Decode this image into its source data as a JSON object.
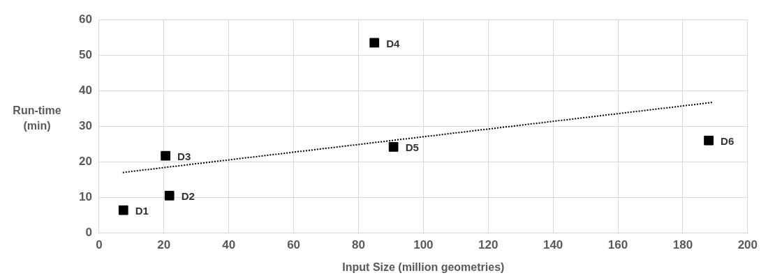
{
  "chart_data": {
    "type": "scatter",
    "xlabel": "Input Size (million geometries)",
    "ylabel": "Run-time (min)",
    "x": [
      7.5,
      21.7,
      20.5,
      84.9,
      90.8,
      188
    ],
    "series": [
      {
        "type": "scatter",
        "color": "#000000",
        "values": [
          6.4,
          10.5,
          21.7,
          53.5,
          24.2,
          26
        ],
        "marker": "square"
      },
      {
        "type": "line",
        "color": "#000000",
        "x": [
          7.3,
          189
        ],
        "values": [
          17,
          36.7
        ],
        "line_style": "dotted"
      }
    ],
    "annotations": [
      {
        "text": "D1",
        "x": 7.5,
        "y": 6.4
      },
      {
        "text": "D2",
        "x": 21.7,
        "y": 10.5
      },
      {
        "text": "D3",
        "x": 20.5,
        "y": 21.7
      },
      {
        "text": "D4",
        "x": 84.9,
        "y": 53.5
      },
      {
        "text": "D5",
        "x": 90.8,
        "y": 24.2
      },
      {
        "text": "D6",
        "x": 188,
        "y": 26
      }
    ],
    "xlim": [
      0,
      200
    ],
    "xticks": [
      0,
      20,
      40,
      60,
      80,
      100,
      120,
      140,
      160,
      180,
      200
    ],
    "ylim": [
      0,
      60
    ],
    "yticks": [
      0,
      10,
      20,
      30,
      40,
      50,
      60
    ],
    "grid": true,
    "legend": false
  }
}
